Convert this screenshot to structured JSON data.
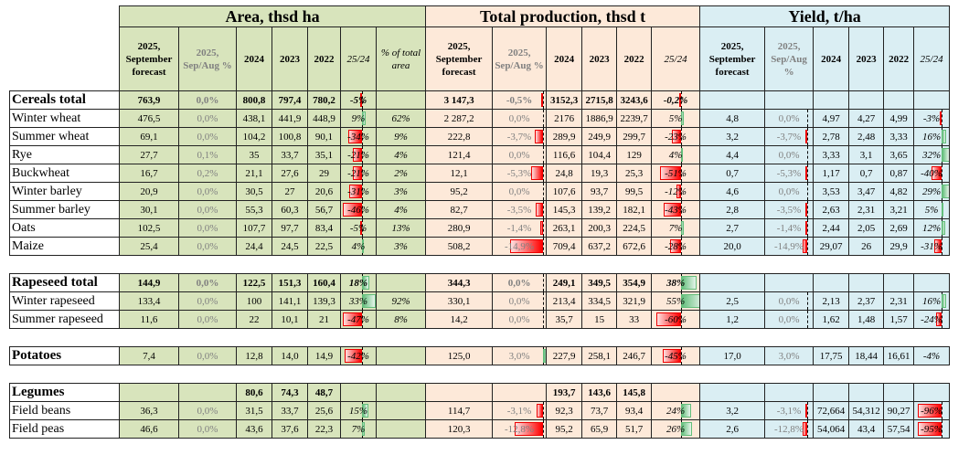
{
  "headers": {
    "area_title": "Area, thsd ha",
    "prod_title": "Total production, thsd t",
    "yield_title": "Yield, t/ha",
    "area_cols": [
      "2025, September forecast",
      "2025, Sep/Aug %",
      "2024",
      "2023",
      "2022",
      "25/24",
      "% of total area"
    ],
    "prod_cols": [
      "2025, September forecast",
      "2025, Sep/Aug %",
      "2024",
      "2023",
      "2022",
      "25/24"
    ],
    "yield_cols": [
      "2025, September forecast",
      "2025, Sep/Aug %",
      "2024",
      "2023",
      "2022",
      "25/24"
    ]
  },
  "colors": {
    "area": "#d8e4bc",
    "production": "#fde9d9",
    "yield": "#daeef3",
    "negative": "#ff0000",
    "positive": "#63be7b"
  },
  "rows": [
    {
      "name": "Cereals total",
      "total": true,
      "area": [
        "763,9",
        "0,0%",
        "800,8",
        "797,4",
        "780,2",
        "-5%",
        ""
      ],
      "prod": [
        "3 147,3",
        "-0,5%",
        "3152,3",
        "2715,8",
        "3243,6",
        "-0,2%"
      ],
      "yield": [
        "",
        "",
        "",
        "",
        "",
        ""
      ]
    },
    {
      "name": "Winter wheat",
      "area": [
        "476,5",
        "0,0%",
        "438,1",
        "441,9",
        "448,9",
        "9%",
        "62%"
      ],
      "prod": [
        "2 287,2",
        "0,0%",
        "2176",
        "1886,9",
        "2239,7",
        "5%"
      ],
      "yield": [
        "4,8",
        "0,0%",
        "4,97",
        "4,27",
        "4,99",
        "-3%"
      ]
    },
    {
      "name": "Summer wheat",
      "area": [
        "69,1",
        "0,0%",
        "104,2",
        "100,8",
        "90,1",
        "-34%",
        "9%"
      ],
      "prod": [
        "222,8",
        "-3,7%",
        "289,9",
        "249,9",
        "299,7",
        "-23%"
      ],
      "yield": [
        "3,2",
        "-3,7%",
        "2,78",
        "2,48",
        "3,33",
        "16%"
      ]
    },
    {
      "name": "Rye",
      "area": [
        "27,7",
        "0,1%",
        "35",
        "33,7",
        "35,1",
        "-21%",
        "4%"
      ],
      "prod": [
        "121,4",
        "0,0%",
        "116,6",
        "104,4",
        "129",
        "4%"
      ],
      "yield": [
        "4,4",
        "0,0%",
        "3,33",
        "3,1",
        "3,65",
        "32%"
      ]
    },
    {
      "name": "Buckwheat",
      "area": [
        "16,7",
        "0,2%",
        "21,1",
        "27,6",
        "29",
        "-21%",
        "2%"
      ],
      "prod": [
        "12,1",
        "-5,3%",
        "24,8",
        "19,3",
        "25,3",
        "-51%"
      ],
      "yield": [
        "0,7",
        "-5,3%",
        "1,17",
        "0,7",
        "0,87",
        "-40%"
      ]
    },
    {
      "name": "Winter barley",
      "area": [
        "20,9",
        "0,0%",
        "30,5",
        "27",
        "20,6",
        "-31%",
        "3%"
      ],
      "prod": [
        "95,2",
        "0,0%",
        "107,6",
        "93,7",
        "99,5",
        "-12%"
      ],
      "yield": [
        "4,6",
        "0,0%",
        "3,53",
        "3,47",
        "4,82",
        "29%"
      ]
    },
    {
      "name": "Summer barley",
      "area": [
        "30,1",
        "0,0%",
        "55,3",
        "60,3",
        "56,7",
        "-46%",
        "4%"
      ],
      "prod": [
        "82,7",
        "-3,5%",
        "145,3",
        "139,2",
        "182,1",
        "-43%"
      ],
      "yield": [
        "2,8",
        "-3,5%",
        "2,63",
        "2,31",
        "3,21",
        "5%"
      ]
    },
    {
      "name": "Oats",
      "area": [
        "102,5",
        "0,0%",
        "107,7",
        "97,7",
        "83,4",
        "-5%",
        "13%"
      ],
      "prod": [
        "280,9",
        "-1,4%",
        "263,1",
        "200,3",
        "224,5",
        "7%"
      ],
      "yield": [
        "2,7",
        "-1,4%",
        "2,44",
        "2,05",
        "2,69",
        "12%"
      ]
    },
    {
      "name": "Maize",
      "area": [
        "25,4",
        "0,0%",
        "24,4",
        "24,5",
        "22,5",
        "4%",
        "3%"
      ],
      "prod": [
        "508,2",
        "-14,9%",
        "709,4",
        "637,2",
        "672,6",
        "-28%"
      ],
      "yield": [
        "20,0",
        "-14,9%",
        "29,07",
        "26",
        "29,9",
        "-31%"
      ]
    },
    {
      "spacer": true
    },
    {
      "name": "Rapeseed total",
      "total": true,
      "area": [
        "144,9",
        "0,0%",
        "122,5",
        "151,3",
        "160,4",
        "18%",
        ""
      ],
      "prod": [
        "344,3",
        "0,0%",
        "249,1",
        "349,5",
        "354,9",
        "38%"
      ],
      "yield": [
        "",
        "",
        "",
        "",
        "",
        ""
      ]
    },
    {
      "name": "Winter rapeseed",
      "area": [
        "133,4",
        "0,0%",
        "100",
        "141,1",
        "139,3",
        "33%",
        "92%"
      ],
      "prod": [
        "330,1",
        "0,0%",
        "213,4",
        "334,5",
        "321,9",
        "55%"
      ],
      "yield": [
        "2,5",
        "0,0%",
        "2,13",
        "2,37",
        "2,31",
        "16%"
      ]
    },
    {
      "name": "Summer rapeseed",
      "area": [
        "11,6",
        "0,0%",
        "22",
        "10,1",
        "21",
        "-47%",
        "8%"
      ],
      "prod": [
        "14,2",
        "0,0%",
        "35,7",
        "15",
        "33",
        "-60%"
      ],
      "yield": [
        "1,2",
        "0,0%",
        "1,62",
        "1,48",
        "1,57",
        "-24%"
      ]
    },
    {
      "spacer": true
    },
    {
      "name": "Potatoes",
      "total": true,
      "boldNumbers": false,
      "area": [
        "7,4",
        "0,0%",
        "12,8",
        "14,0",
        "14,9",
        "-42%",
        ""
      ],
      "prod": [
        "125,0",
        "3,0%",
        "227,9",
        "258,1",
        "246,7",
        "-45%"
      ],
      "yield": [
        "17,0",
        "3,0%",
        "17,75",
        "18,44",
        "16,61",
        "-4%"
      ]
    },
    {
      "spacer": true
    },
    {
      "name": "Legumes",
      "total": true,
      "area": [
        "",
        "",
        "80,6",
        "74,3",
        "48,7",
        "",
        ""
      ],
      "prod": [
        "",
        "",
        "193,7",
        "143,6",
        "145,8",
        ""
      ],
      "yield": [
        "",
        "",
        "",
        "",
        "",
        ""
      ]
    },
    {
      "name": "Field beans",
      "area": [
        "36,3",
        "0,0%",
        "31,5",
        "33,7",
        "25,6",
        "15%",
        ""
      ],
      "prod": [
        "114,7",
        "-3,1%",
        "92,3",
        "73,7",
        "93,4",
        "24%"
      ],
      "yield": [
        "3,2",
        "-3,1%",
        "72,664",
        "54,312",
        "90,27",
        "-96%"
      ]
    },
    {
      "name": "Field peas",
      "area": [
        "46,6",
        "0,0%",
        "43,6",
        "37,6",
        "22,3",
        "7%",
        ""
      ],
      "prod": [
        "120,3",
        "-12,8%",
        "95,2",
        "65,9",
        "51,7",
        "26%"
      ],
      "yield": [
        "2,6",
        "-12,8%",
        "54,064",
        "43,4",
        "57,54",
        "-95%"
      ]
    }
  ]
}
